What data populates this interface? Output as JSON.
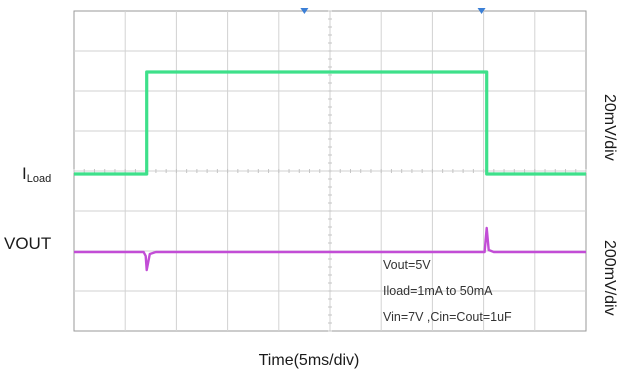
{
  "chart_data": {
    "type": "line",
    "xlabel": "Time(5ms/div)",
    "x_unit": "ms",
    "xlim": [
      0,
      50
    ],
    "grid": true,
    "channels": [
      {
        "label_main": "I",
        "label_sub": "Load",
        "scale": "20mV/div",
        "color": "#3ee08a",
        "points": [
          [
            0,
            0
          ],
          [
            7.1,
            0
          ],
          [
            7.1,
            2.55
          ],
          [
            40.3,
            2.55
          ],
          [
            40.3,
            0
          ],
          [
            50,
            0
          ]
        ]
      },
      {
        "label_main": "VOUT",
        "label_sub": "",
        "scale": "200mV/div",
        "color": "#c24dd6",
        "points": [
          [
            0,
            0
          ],
          [
            6.8,
            0
          ],
          [
            7.0,
            -0.1
          ],
          [
            7.1,
            -0.45
          ],
          [
            7.4,
            -0.05
          ],
          [
            8,
            0
          ],
          [
            40.1,
            0
          ],
          [
            40.3,
            0.6
          ],
          [
            40.5,
            0.05
          ],
          [
            41,
            0
          ],
          [
            50,
            0
          ]
        ]
      }
    ],
    "annotations": [
      "Vout=5V",
      "Iload=1mA to 50mA",
      "Vin=7V ,Cin=Cout=1uF"
    ],
    "trigger_markers": [
      22.5,
      39.8
    ]
  }
}
